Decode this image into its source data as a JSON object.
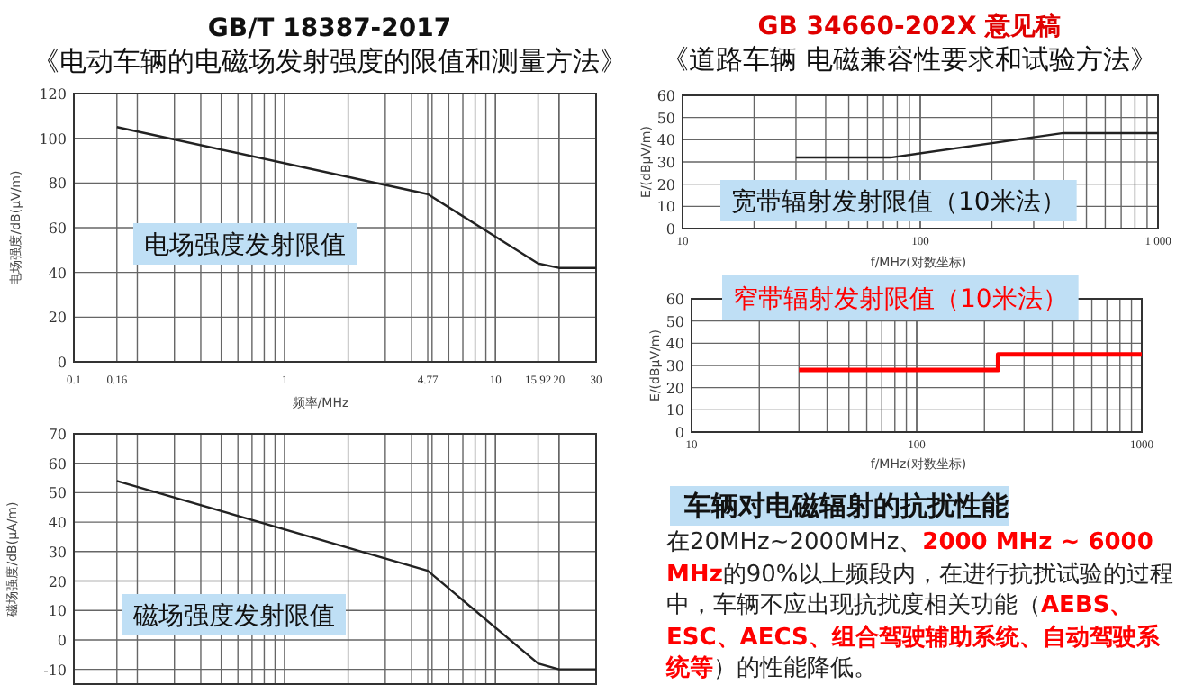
{
  "chart_data": [
    {
      "type": "line",
      "title": "GB/T 18387-2017",
      "subtitle": "《电动车辆的电磁场发射强度的限值和测量方法》",
      "xlabel": "频率/MHz",
      "ylabel": "电场强度/dB(μV/m)",
      "log": "x",
      "grid": true,
      "xlim": [
        0.1,
        30
      ],
      "xticks": [
        0.1,
        0.16,
        1,
        4.77,
        10,
        15.92,
        20,
        30
      ],
      "ylim": [
        0,
        120
      ],
      "yticks": [
        0,
        20,
        40,
        60,
        80,
        100,
        120
      ],
      "annotations": [
        "电场强度发射限值"
      ],
      "series": [
        {
          "color": "#222222",
          "x": [
            0.16,
            4.77,
            15.92,
            20,
            30
          ],
          "values": [
            105,
            75,
            44,
            42,
            42
          ]
        }
      ]
    },
    {
      "type": "line",
      "ylabel": "磁场强度/dB(μA/m)",
      "log": "x",
      "grid": true,
      "tick_labels": "y",
      "xlim": [
        0.1,
        30
      ],
      "xticks": [
        0.1,
        0.16,
        1,
        4.77,
        10,
        15.92,
        20,
        30
      ],
      "ylim": [
        -15,
        70
      ],
      "yticks": [
        -10,
        0,
        10,
        20,
        30,
        40,
        50,
        60,
        70
      ],
      "annotations": [
        "磁场强度发射限值"
      ],
      "series": [
        {
          "color": "#222222",
          "x": [
            0.16,
            4.77,
            15.92,
            20,
            30
          ],
          "values": [
            54,
            23.5,
            -8,
            -10,
            -10
          ]
        }
      ]
    },
    {
      "type": "line",
      "title": "GB 34660-202X 意见稿",
      "subtitle": "《道路车辆 电磁兼容性要求和试验方法》",
      "xlabel": "f/MHz(对数坐标)",
      "ylabel": "E/(dBμV/m)",
      "log": "x",
      "grid": true,
      "xlim": [
        10,
        1000
      ],
      "xticks": [
        10,
        100,
        {
          "value": 1000,
          "label": "1 000"
        }
      ],
      "ylim": [
        0,
        60
      ],
      "yticks": [
        0,
        10,
        20,
        30,
        40,
        50,
        60
      ],
      "annotations": [
        "宽带辐射发射限值（10米法）"
      ],
      "series": [
        {
          "color": "#222222",
          "x": [
            30,
            75,
            400,
            1000
          ],
          "values": [
            32,
            32,
            43,
            43
          ]
        }
      ]
    },
    {
      "type": "step",
      "xlabel": "f/MHz(对数坐标)",
      "ylabel": "E/(dBμV/m)",
      "log": "x",
      "grid": true,
      "xlim": [
        10,
        1000
      ],
      "xticks": [
        10,
        100,
        1000
      ],
      "ylim": [
        0,
        60
      ],
      "yticks": [
        0,
        10,
        20,
        30,
        40,
        50,
        60
      ],
      "annotations": [
        "窄带辐射发射限值（10米法）"
      ],
      "series": [
        {
          "color": "#ff0000",
          "x": [
            30,
            230,
            1000
          ],
          "values": [
            28,
            35,
            35
          ]
        }
      ]
    },
    {
      "type": "other",
      "title": "车辆对电磁辐射的抗扰性能",
      "annotations": [
        "在20MHz~2000MHz、**2000 MHz ~ 6000 MHz**的90%以上频段内，在进行抗扰试验的过程中，车辆不应出现抗扰度相关功能（**AEBS、ESC、AECS、组合驾驶辅助系统、自动驾驶系统等**）的性能降低。"
      ]
    }
  ]
}
